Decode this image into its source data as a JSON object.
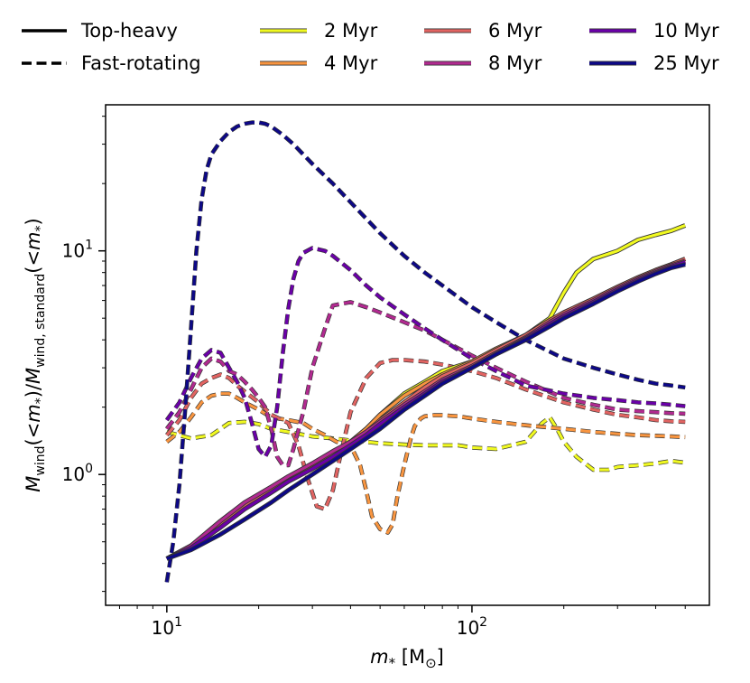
{
  "chart_data": {
    "type": "line",
    "title": "",
    "xlabel": "m_* [M_⊙]",
    "ylabel": "M_wind(<m_*)/M_wind,standard(<m_*)",
    "xscale": "log",
    "yscale": "log",
    "xlim": [
      6.3,
      600
    ],
    "ylim": [
      0.26,
      45
    ],
    "x_tick_labels": [
      {
        "value": 10,
        "base": "10",
        "exp": "1"
      },
      {
        "value": 100,
        "base": "10",
        "exp": "2"
      }
    ],
    "y_tick_labels": [
      {
        "value": 1,
        "base": "10",
        "exp": "0"
      },
      {
        "value": 10,
        "base": "10",
        "exp": "1"
      }
    ],
    "grid": false,
    "legend_position": "top",
    "style_legend": [
      {
        "label": "Top-heavy",
        "style": "solid"
      },
      {
        "label": "Fast-rotating",
        "style": "dashed"
      }
    ],
    "series": [
      {
        "name": "2 Myr",
        "color": "#f0f921",
        "top_heavy": {
          "x": [
            10,
            12,
            15,
            18,
            22,
            25,
            30,
            35,
            40,
            45,
            50,
            60,
            70,
            80,
            100,
            120,
            150,
            180,
            200,
            220,
            250,
            300,
            350,
            400,
            450,
            500
          ],
          "y": [
            0.42,
            0.48,
            0.6,
            0.72,
            0.85,
            0.95,
            1.1,
            1.25,
            1.4,
            1.6,
            1.85,
            2.3,
            2.6,
            2.9,
            3.2,
            3.6,
            4.2,
            5.0,
            6.5,
            8.0,
            9.2,
            10.0,
            11.2,
            11.8,
            12.3,
            13.0
          ]
        },
        "fast_rotating": {
          "x": [
            10,
            12,
            14,
            16,
            18,
            20,
            22,
            25,
            30,
            35,
            40,
            50,
            60,
            70,
            80,
            90,
            100,
            120,
            150,
            170,
            180,
            190,
            200,
            220,
            250,
            280,
            300,
            350,
            400,
            450,
            500
          ],
          "y": [
            1.55,
            1.45,
            1.5,
            1.7,
            1.72,
            1.68,
            1.6,
            1.55,
            1.48,
            1.45,
            1.42,
            1.38,
            1.36,
            1.35,
            1.35,
            1.35,
            1.32,
            1.3,
            1.4,
            1.7,
            1.8,
            1.6,
            1.4,
            1.2,
            1.05,
            1.05,
            1.08,
            1.1,
            1.12,
            1.15,
            1.13
          ]
        }
      },
      {
        "name": "4 Myr",
        "color": "#f89540",
        "top_heavy": {
          "x": [
            10,
            12,
            15,
            18,
            22,
            25,
            30,
            35,
            40,
            45,
            50,
            60,
            70,
            80,
            100,
            120,
            150,
            180,
            200,
            250,
            300,
            350,
            400,
            450,
            500
          ],
          "y": [
            0.42,
            0.48,
            0.6,
            0.72,
            0.85,
            0.95,
            1.1,
            1.25,
            1.4,
            1.6,
            1.85,
            2.25,
            2.55,
            2.8,
            3.2,
            3.65,
            4.2,
            4.9,
            5.3,
            6.1,
            6.9,
            7.6,
            8.2,
            8.7,
            9.2
          ]
        },
        "fast_rotating": {
          "x": [
            10,
            11,
            12,
            13,
            14,
            15,
            16,
            17,
            18,
            20,
            22,
            25,
            28,
            30,
            33,
            36,
            40,
            43,
            45,
            47,
            50,
            53,
            55,
            57,
            60,
            63,
            65,
            68,
            70,
            75,
            80,
            90,
            100,
            120,
            150,
            200,
            250,
            300,
            350,
            400,
            450,
            500
          ],
          "y": [
            1.4,
            1.55,
            1.8,
            2.1,
            2.25,
            2.3,
            2.3,
            2.2,
            2.1,
            1.95,
            1.8,
            1.75,
            1.7,
            1.6,
            1.5,
            1.4,
            1.35,
            1.1,
            0.85,
            0.65,
            0.57,
            0.55,
            0.6,
            0.8,
            1.1,
            1.45,
            1.65,
            1.78,
            1.82,
            1.84,
            1.84,
            1.82,
            1.78,
            1.72,
            1.66,
            1.6,
            1.55,
            1.52,
            1.5,
            1.49,
            1.48,
            1.47
          ]
        }
      },
      {
        "name": "6 Myr",
        "color": "#e16462",
        "top_heavy": {
          "x": [
            10,
            12,
            15,
            18,
            22,
            25,
            30,
            35,
            40,
            45,
            50,
            60,
            70,
            80,
            100,
            120,
            150,
            180,
            200,
            250,
            300,
            350,
            400,
            450,
            500
          ],
          "y": [
            0.42,
            0.48,
            0.6,
            0.72,
            0.85,
            0.95,
            1.1,
            1.25,
            1.4,
            1.55,
            1.75,
            2.1,
            2.45,
            2.75,
            3.15,
            3.6,
            4.2,
            4.9,
            5.3,
            6.1,
            6.9,
            7.6,
            8.2,
            8.7,
            9.2
          ]
        },
        "fast_rotating": {
          "x": [
            10,
            11,
            12,
            13,
            14,
            15,
            16,
            17,
            18,
            20,
            22,
            25,
            27,
            29,
            31,
            33,
            35,
            37,
            40,
            45,
            50,
            55,
            60,
            70,
            80,
            100,
            120,
            150,
            200,
            250,
            300,
            350,
            400,
            450,
            500
          ],
          "y": [
            1.5,
            1.75,
            2.2,
            2.55,
            2.7,
            2.8,
            2.7,
            2.5,
            2.35,
            2.1,
            1.85,
            1.7,
            1.35,
            0.95,
            0.72,
            0.7,
            0.85,
            1.2,
            1.9,
            2.7,
            3.15,
            3.25,
            3.25,
            3.2,
            3.1,
            2.9,
            2.7,
            2.4,
            2.1,
            1.95,
            1.85,
            1.8,
            1.75,
            1.73,
            1.72
          ]
        }
      },
      {
        "name": "8 Myr",
        "color": "#b12a90",
        "top_heavy": {
          "x": [
            10,
            12,
            15,
            18,
            22,
            25,
            30,
            35,
            40,
            45,
            50,
            60,
            70,
            80,
            100,
            120,
            150,
            180,
            200,
            250,
            300,
            350,
            400,
            450,
            500
          ],
          "y": [
            0.42,
            0.48,
            0.62,
            0.75,
            0.88,
            0.98,
            1.12,
            1.27,
            1.4,
            1.55,
            1.72,
            2.05,
            2.35,
            2.65,
            3.05,
            3.5,
            4.1,
            4.8,
            5.2,
            6.0,
            6.8,
            7.5,
            8.1,
            8.6,
            9.0
          ]
        },
        "fast_rotating": {
          "x": [
            10,
            11,
            12,
            13,
            14,
            15,
            16,
            17,
            18,
            19,
            20,
            21,
            22,
            23,
            24,
            25,
            26,
            28,
            30,
            33,
            35,
            40,
            45,
            50,
            60,
            70,
            80,
            100,
            120,
            150,
            200,
            250,
            300,
            350,
            400,
            450,
            500
          ],
          "y": [
            1.6,
            1.9,
            2.4,
            3.0,
            3.3,
            3.2,
            2.9,
            2.8,
            2.6,
            2.4,
            2.2,
            2.0,
            1.6,
            1.2,
            1.1,
            1.1,
            1.3,
            1.9,
            3.0,
            4.5,
            5.7,
            5.9,
            5.6,
            5.3,
            4.8,
            4.4,
            4.0,
            3.4,
            3.0,
            2.6,
            2.2,
            2.05,
            1.95,
            1.92,
            1.9,
            1.88,
            1.87
          ]
        }
      },
      {
        "name": "10 Myr",
        "color": "#6a00a8",
        "top_heavy": {
          "x": [
            10,
            12,
            15,
            18,
            22,
            25,
            30,
            35,
            40,
            45,
            50,
            60,
            70,
            80,
            100,
            120,
            150,
            180,
            200,
            250,
            300,
            350,
            400,
            450,
            500
          ],
          "y": [
            0.42,
            0.47,
            0.58,
            0.7,
            0.83,
            0.93,
            1.06,
            1.2,
            1.35,
            1.5,
            1.68,
            2.0,
            2.3,
            2.6,
            3.0,
            3.45,
            4.05,
            4.7,
            5.1,
            5.9,
            6.7,
            7.4,
            8.0,
            8.5,
            8.9
          ]
        },
        "fast_rotating": {
          "x": [
            10,
            11,
            12,
            13,
            14,
            15,
            16,
            17,
            18,
            19,
            20,
            21,
            22,
            23,
            24,
            25,
            26,
            27,
            28,
            30,
            33,
            35,
            40,
            45,
            50,
            60,
            70,
            80,
            100,
            120,
            150,
            200,
            250,
            300,
            350,
            400,
            450,
            500
          ],
          "y": [
            1.75,
            2.1,
            2.7,
            3.3,
            3.6,
            3.5,
            3.0,
            2.6,
            2.2,
            1.7,
            1.3,
            1.2,
            1.35,
            2.0,
            3.5,
            5.5,
            7.5,
            9.0,
            9.8,
            10.3,
            10.0,
            9.5,
            8.2,
            7.0,
            6.2,
            5.2,
            4.5,
            4.0,
            3.3,
            2.9,
            2.5,
            2.3,
            2.2,
            2.15,
            2.1,
            2.08,
            2.05,
            2.02
          ]
        }
      },
      {
        "name": "25 Myr",
        "color": "#0d0887",
        "top_heavy": {
          "x": [
            10,
            12,
            15,
            18,
            22,
            25,
            30,
            35,
            40,
            45,
            50,
            60,
            70,
            80,
            100,
            120,
            150,
            180,
            200,
            250,
            300,
            350,
            400,
            450,
            500
          ],
          "y": [
            0.42,
            0.46,
            0.54,
            0.63,
            0.75,
            0.85,
            1.0,
            1.15,
            1.3,
            1.45,
            1.6,
            1.95,
            2.25,
            2.55,
            3.0,
            3.45,
            4.0,
            4.6,
            5.0,
            5.8,
            6.6,
            7.3,
            7.9,
            8.4,
            8.7
          ]
        },
        "fast_rotating": {
          "x": [
            10,
            10.5,
            11,
            11.5,
            12,
            12.5,
            13,
            13.5,
            14,
            15,
            16,
            17,
            18,
            19,
            20,
            21,
            22,
            24,
            26,
            28,
            30,
            35,
            40,
            50,
            60,
            70,
            80,
            100,
            120,
            150,
            200,
            250,
            300,
            350,
            400,
            450,
            500
          ],
          "y": [
            0.33,
            0.5,
            0.9,
            2.0,
            4.5,
            10.0,
            17.0,
            23.0,
            27.0,
            31.0,
            34.0,
            36.0,
            37.0,
            37.5,
            37.5,
            37.0,
            36.0,
            33.0,
            30.0,
            27.0,
            24.5,
            20.0,
            16.5,
            12.0,
            9.5,
            8.0,
            7.0,
            5.6,
            4.8,
            4.0,
            3.3,
            3.0,
            2.8,
            2.65,
            2.55,
            2.5,
            2.45
          ]
        }
      }
    ]
  }
}
